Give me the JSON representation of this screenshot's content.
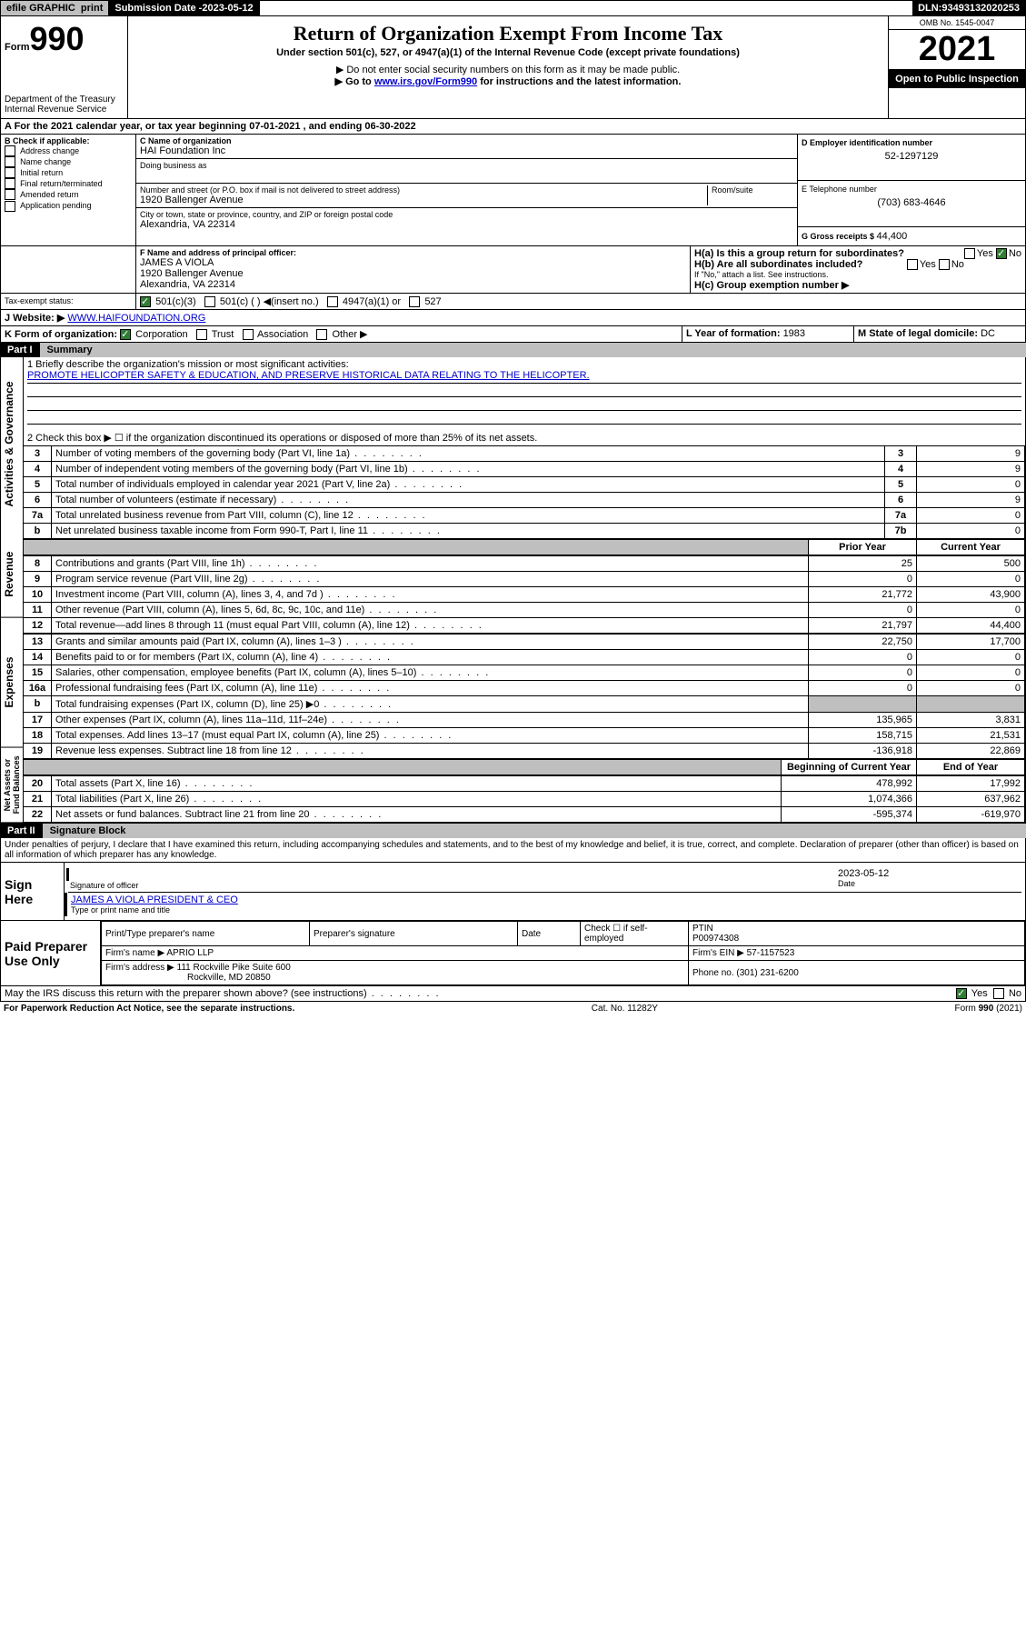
{
  "topbar": {
    "efile": "efile GRAPHIC",
    "print": "print",
    "subdate_label": "Submission Date - ",
    "subdate": "2023-05-12",
    "dln_label": "DLN: ",
    "dln": "93493132020253"
  },
  "header": {
    "form_label": "Form",
    "form_no": "990",
    "dept": "Department of the Treasury\nInternal Revenue Service",
    "title": "Return of Organization Exempt From Income Tax",
    "subtitle": "Under section 501(c), 527, or 4947(a)(1) of the Internal Revenue Code (except private foundations)",
    "line1": "▶ Do not enter social security numbers on this form as it may be made public.",
    "line2_pre": "▶ Go to ",
    "line2_link": "www.irs.gov/Form990",
    "line2_post": " for instructions and the latest information.",
    "omb_label": "OMB No. 1545-0047",
    "year": "2021",
    "open": "Open to Public Inspection"
  },
  "A": {
    "text_pre": "A For the 2021 calendar year, or tax year beginning ",
    "begin": "07-01-2021",
    "mid": " , and ending ",
    "end": "06-30-2022"
  },
  "B": {
    "label": "B Check if applicable:",
    "items": [
      "Address change",
      "Name change",
      "Initial return",
      "Final return/terminated",
      "Amended return",
      "Application pending"
    ]
  },
  "C": {
    "name_label": "C Name of organization",
    "name": "HAI Foundation Inc",
    "dba_label": "Doing business as",
    "dba": "",
    "street_label": "Number and street (or P.O. box if mail is not delivered to street address)",
    "room_label": "Room/suite",
    "street": "1920 Ballenger Avenue",
    "city_label": "City or town, state or province, country, and ZIP or foreign postal code",
    "city": "Alexandria, VA  22314"
  },
  "D": {
    "label": "D Employer identification number",
    "value": "52-1297129"
  },
  "E": {
    "label": "E Telephone number",
    "value": "(703) 683-4646"
  },
  "G": {
    "label": "G Gross receipts $ ",
    "value": "44,400"
  },
  "F": {
    "label": "F  Name and address of principal officer:",
    "name": "JAMES A VIOLA",
    "addr1": "1920 Ballenger Avenue",
    "addr2": "Alexandria, VA  22314"
  },
  "H": {
    "a": "H(a)  Is this a group return for subordinates?",
    "b": "H(b)  Are all subordinates included?",
    "b_note": "If \"No,\" attach a list. See instructions.",
    "c": "H(c)  Group exemption number ▶",
    "yes": "Yes",
    "no": "No"
  },
  "I": {
    "label": "Tax-exempt status:",
    "opts": [
      "501(c)(3)",
      "501(c) (  ) ◀(insert no.)",
      "4947(a)(1) or",
      "527"
    ]
  },
  "J": {
    "label": "J   Website: ▶ ",
    "value": "WWW.HAIFOUNDATION.ORG"
  },
  "K": {
    "label": "K Form of organization: ",
    "opts": [
      "Corporation",
      "Trust",
      "Association",
      "Other ▶"
    ]
  },
  "L": {
    "label": "L Year of formation: ",
    "value": "1983"
  },
  "M": {
    "label": "M State of legal domicile: ",
    "value": "DC"
  },
  "partI": {
    "hdr": "Part I",
    "title": "Summary"
  },
  "mission": {
    "label": "1   Briefly describe the organization's mission or most significant activities:",
    "text": "PROMOTE HELICOPTER SAFETY & EDUCATION, AND PRESERVE HISTORICAL DATA RELATING TO THE HELICOPTER."
  },
  "line2_text": "2   Check this box ▶ ☐  if the organization discontinued its operations or disposed of more than 25% of its net assets.",
  "gov_rows": [
    {
      "n": "3",
      "t": "Number of voting members of the governing body (Part VI, line 1a)",
      "box": "3",
      "v": "9"
    },
    {
      "n": "4",
      "t": "Number of independent voting members of the governing body (Part VI, line 1b)",
      "box": "4",
      "v": "9"
    },
    {
      "n": "5",
      "t": "Total number of individuals employed in calendar year 2021 (Part V, line 2a)",
      "box": "5",
      "v": "0"
    },
    {
      "n": "6",
      "t": "Total number of volunteers (estimate if necessary)",
      "box": "6",
      "v": "9"
    },
    {
      "n": "7a",
      "t": "Total unrelated business revenue from Part VIII, column (C), line 12",
      "box": "7a",
      "v": "0"
    },
    {
      "n": "b",
      "t": "Net unrelated business taxable income from Form 990-T, Part I, line 11",
      "box": "7b",
      "v": "0"
    }
  ],
  "col_hdr": {
    "py": "Prior Year",
    "cy": "Current Year"
  },
  "rev_rows": [
    {
      "n": "8",
      "t": "Contributions and grants (Part VIII, line 1h)",
      "py": "25",
      "cy": "500"
    },
    {
      "n": "9",
      "t": "Program service revenue (Part VIII, line 2g)",
      "py": "0",
      "cy": "0"
    },
    {
      "n": "10",
      "t": "Investment income (Part VIII, column (A), lines 3, 4, and 7d )",
      "py": "21,772",
      "cy": "43,900"
    },
    {
      "n": "11",
      "t": "Other revenue (Part VIII, column (A), lines 5, 6d, 8c, 9c, 10c, and 11e)",
      "py": "0",
      "cy": "0"
    },
    {
      "n": "12",
      "t": "Total revenue—add lines 8 through 11 (must equal Part VIII, column (A), line 12)",
      "py": "21,797",
      "cy": "44,400"
    }
  ],
  "exp_rows": [
    {
      "n": "13",
      "t": "Grants and similar amounts paid (Part IX, column (A), lines 1–3 )",
      "py": "22,750",
      "cy": "17,700"
    },
    {
      "n": "14",
      "t": "Benefits paid to or for members (Part IX, column (A), line 4)",
      "py": "0",
      "cy": "0"
    },
    {
      "n": "15",
      "t": "Salaries, other compensation, employee benefits (Part IX, column (A), lines 5–10)",
      "py": "0",
      "cy": "0"
    },
    {
      "n": "16a",
      "t": "Professional fundraising fees (Part IX, column (A), line 11e)",
      "py": "0",
      "cy": "0"
    },
    {
      "n": "b",
      "t": "Total fundraising expenses (Part IX, column (D), line 25) ▶0",
      "py": "",
      "cy": "",
      "shade": true
    },
    {
      "n": "17",
      "t": "Other expenses (Part IX, column (A), lines 11a–11d, 11f–24e)",
      "py": "135,965",
      "cy": "3,831"
    },
    {
      "n": "18",
      "t": "Total expenses. Add lines 13–17 (must equal Part IX, column (A), line 25)",
      "py": "158,715",
      "cy": "21,531"
    },
    {
      "n": "19",
      "t": "Revenue less expenses. Subtract line 18 from line 12",
      "py": "-136,918",
      "cy": "22,869"
    }
  ],
  "na_hdr": {
    "b": "Beginning of Current Year",
    "e": "End of Year"
  },
  "na_rows": [
    {
      "n": "20",
      "t": "Total assets (Part X, line 16)",
      "b": "478,992",
      "e": "17,992"
    },
    {
      "n": "21",
      "t": "Total liabilities (Part X, line 26)",
      "b": "1,074,366",
      "e": "637,962"
    },
    {
      "n": "22",
      "t": "Net assets or fund balances. Subtract line 21 from line 20",
      "b": "-595,374",
      "e": "-619,970"
    }
  ],
  "partII": {
    "hdr": "Part II",
    "title": "Signature Block"
  },
  "perjury": "Under penalties of perjury, I declare that I have examined this return, including accompanying schedules and statements, and to the best of my knowledge and belief, it is true, correct, and complete. Declaration of preparer (other than officer) is based on all information of which preparer has any knowledge.",
  "sign": {
    "here": "Sign Here",
    "sig_label": "Signature of officer",
    "date_label": "Date",
    "date": "2023-05-12",
    "name": "JAMES A VIOLA  PRESIDENT & CEO",
    "name_label": "Type or print name and title"
  },
  "prep": {
    "title": "Paid Preparer Use Only",
    "cols": [
      "Print/Type preparer's name",
      "Preparer's signature",
      "Date"
    ],
    "check_label": "Check ☐ if self-employed",
    "ptin_label": "PTIN",
    "ptin": "P00974308",
    "firm_name_label": "Firm's name   ▶ ",
    "firm_name": "APRIO LLP",
    "firm_ein_label": "Firm's EIN ▶ ",
    "firm_ein": "57-1157523",
    "firm_addr_label": "Firm's address ▶ ",
    "firm_addr": "111 Rockville Pike Suite 600",
    "firm_city": "Rockville, MD  20850",
    "phone_label": "Phone no. ",
    "phone": "(301) 231-6200"
  },
  "discuss": {
    "text": "May the IRS discuss this return with the preparer shown above? (see instructions)",
    "yes": "Yes",
    "no": "No"
  },
  "footer": {
    "left": "For Paperwork Reduction Act Notice, see the separate instructions.",
    "mid": "Cat. No. 11282Y",
    "right": "Form 990 (2021)"
  },
  "vlabels": {
    "gov": "Activities & Governance",
    "rev": "Revenue",
    "exp": "Expenses",
    "na": "Net Assets or Fund Balances"
  }
}
